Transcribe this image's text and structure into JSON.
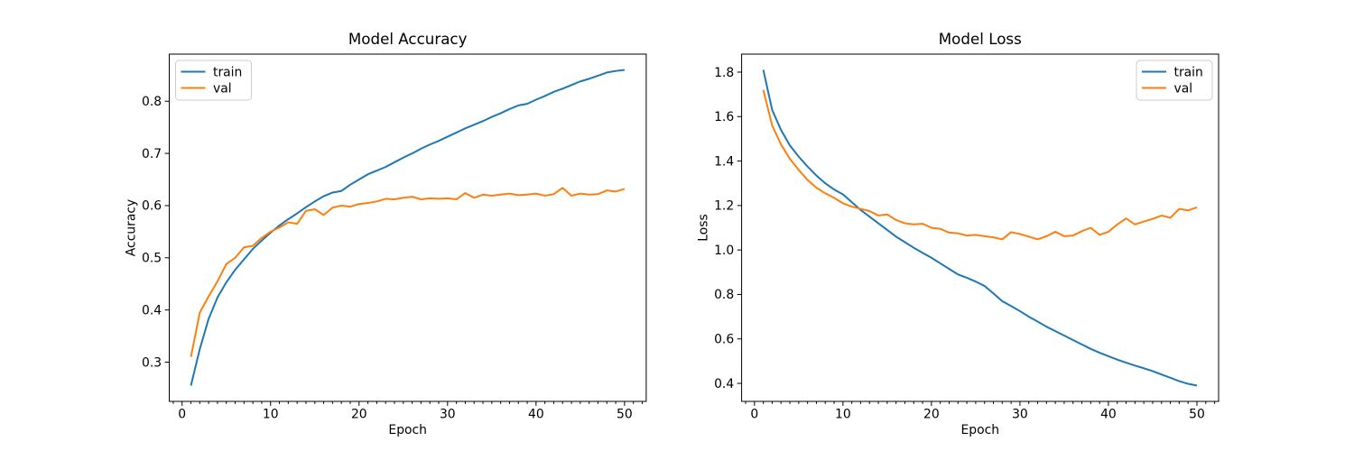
{
  "figure": {
    "background": "#ffffff",
    "text_color": "#000000",
    "spine_color": "#000000"
  },
  "chart_data": [
    {
      "id": "accuracy-chart",
      "type": "line",
      "title": "Model Accuracy",
      "xlabel": "Epoch",
      "ylabel": "Accuracy",
      "legend_position": "upper-left",
      "legend_labels": [
        "train",
        "val"
      ],
      "grid": false,
      "xlim": [
        -1.45,
        52.45
      ],
      "ylim": [
        0.2248,
        0.8903
      ],
      "xticks": [
        0,
        10,
        20,
        30,
        40,
        50
      ],
      "xtick_labels": [
        "0",
        "10",
        "20",
        "30",
        "40",
        "50"
      ],
      "yticks": [
        0.3,
        0.4,
        0.5,
        0.6,
        0.7,
        0.8
      ],
      "ytick_labels": [
        "0.3",
        "0.4",
        "0.5",
        "0.6",
        "0.7",
        "0.8"
      ],
      "minor_xtick_step": 1,
      "x": [
        1,
        2,
        3,
        4,
        5,
        6,
        7,
        8,
        9,
        10,
        11,
        12,
        13,
        14,
        15,
        16,
        17,
        18,
        19,
        20,
        21,
        22,
        23,
        24,
        25,
        26,
        27,
        28,
        29,
        30,
        31,
        32,
        33,
        34,
        35,
        36,
        37,
        38,
        39,
        40,
        41,
        42,
        43,
        44,
        45,
        46,
        47,
        48,
        49,
        50
      ],
      "series": [
        {
          "name": "train",
          "color": "#1f77b4",
          "values": [
            0.255,
            0.325,
            0.383,
            0.424,
            0.453,
            0.477,
            0.497,
            0.517,
            0.533,
            0.548,
            0.562,
            0.574,
            0.585,
            0.597,
            0.608,
            0.618,
            0.625,
            0.628,
            0.64,
            0.65,
            0.66,
            0.667,
            0.674,
            0.683,
            0.692,
            0.7,
            0.709,
            0.717,
            0.724,
            0.732,
            0.74,
            0.748,
            0.755,
            0.762,
            0.77,
            0.777,
            0.785,
            0.792,
            0.795,
            0.803,
            0.81,
            0.818,
            0.824,
            0.831,
            0.838,
            0.843,
            0.849,
            0.855,
            0.858,
            0.86
          ]
        },
        {
          "name": "val",
          "color": "#ff7f0e",
          "values": [
            0.31,
            0.395,
            0.426,
            0.455,
            0.488,
            0.5,
            0.52,
            0.523,
            0.538,
            0.55,
            0.558,
            0.568,
            0.565,
            0.59,
            0.593,
            0.582,
            0.596,
            0.6,
            0.598,
            0.603,
            0.605,
            0.608,
            0.613,
            0.612,
            0.615,
            0.617,
            0.612,
            0.614,
            0.613,
            0.614,
            0.612,
            0.624,
            0.615,
            0.621,
            0.619,
            0.621,
            0.623,
            0.62,
            0.621,
            0.623,
            0.619,
            0.622,
            0.634,
            0.619,
            0.623,
            0.621,
            0.622,
            0.629,
            0.627,
            0.632
          ]
        }
      ]
    },
    {
      "id": "loss-chart",
      "type": "line",
      "title": "Model Loss",
      "xlabel": "Epoch",
      "ylabel": "Loss",
      "legend_position": "upper-right",
      "legend_labels": [
        "train",
        "val"
      ],
      "grid": false,
      "xlim": [
        -1.45,
        52.45
      ],
      "ylim": [
        0.319,
        1.881
      ],
      "xticks": [
        0,
        10,
        20,
        30,
        40,
        50
      ],
      "xtick_labels": [
        "0",
        "10",
        "20",
        "30",
        "40",
        "50"
      ],
      "yticks": [
        0.4,
        0.6,
        0.8,
        1.0,
        1.2,
        1.4,
        1.6,
        1.8
      ],
      "ytick_labels": [
        "0.4",
        "0.6",
        "0.8",
        "1.0",
        "1.2",
        "1.4",
        "1.6",
        "1.8"
      ],
      "minor_xtick_step": 1,
      "x": [
        1,
        2,
        3,
        4,
        5,
        6,
        7,
        8,
        9,
        10,
        11,
        12,
        13,
        14,
        15,
        16,
        17,
        18,
        19,
        20,
        21,
        22,
        23,
        24,
        25,
        26,
        27,
        28,
        29,
        30,
        31,
        32,
        33,
        34,
        35,
        36,
        37,
        38,
        39,
        40,
        41,
        42,
        43,
        44,
        45,
        46,
        47,
        48,
        49,
        50
      ],
      "series": [
        {
          "name": "train",
          "color": "#1f77b4",
          "values": [
            1.81,
            1.63,
            1.54,
            1.47,
            1.42,
            1.375,
            1.335,
            1.3,
            1.272,
            1.25,
            1.215,
            1.18,
            1.15,
            1.12,
            1.09,
            1.06,
            1.035,
            1.01,
            0.987,
            0.965,
            0.94,
            0.915,
            0.89,
            0.875,
            0.858,
            0.838,
            0.805,
            0.77,
            0.748,
            0.725,
            0.7,
            0.678,
            0.655,
            0.635,
            0.615,
            0.595,
            0.575,
            0.555,
            0.538,
            0.522,
            0.507,
            0.493,
            0.48,
            0.468,
            0.455,
            0.44,
            0.425,
            0.41,
            0.398,
            0.39
          ]
        },
        {
          "name": "val",
          "color": "#ff7f0e",
          "values": [
            1.72,
            1.56,
            1.475,
            1.41,
            1.36,
            1.315,
            1.28,
            1.255,
            1.235,
            1.21,
            1.195,
            1.185,
            1.175,
            1.155,
            1.16,
            1.135,
            1.12,
            1.115,
            1.118,
            1.1,
            1.095,
            1.078,
            1.075,
            1.065,
            1.068,
            1.062,
            1.057,
            1.048,
            1.08,
            1.072,
            1.06,
            1.048,
            1.062,
            1.082,
            1.062,
            1.065,
            1.085,
            1.1,
            1.068,
            1.082,
            1.115,
            1.142,
            1.115,
            1.128,
            1.14,
            1.155,
            1.145,
            1.185,
            1.178,
            1.192
          ]
        }
      ]
    }
  ]
}
